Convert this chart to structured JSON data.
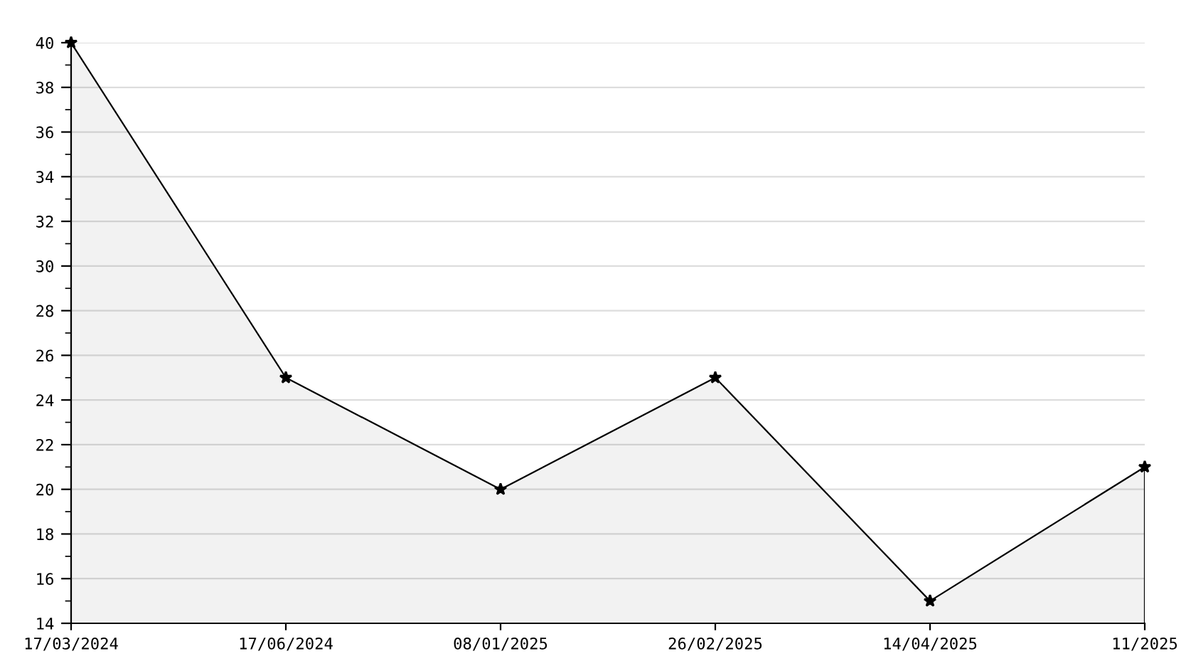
{
  "chart_data": {
    "type": "area",
    "categories": [
      "17/03/2024",
      "17/06/2024",
      "08/01/2025",
      "26/02/2025",
      "14/04/2025",
      "11/2025"
    ],
    "series": [
      {
        "color": "#000000",
        "values": [
          40,
          25,
          20,
          25,
          15,
          21
        ]
      }
    ],
    "ylim": [
      14,
      40
    ],
    "yticks": [
      14,
      {
        "value": 15,
        "label": null
      },
      16,
      {
        "value": 17,
        "label": null
      },
      18,
      {
        "value": 19,
        "label": null
      },
      20,
      {
        "value": 21,
        "label": null
      },
      22,
      {
        "value": 23,
        "label": null
      },
      24,
      {
        "value": 25,
        "label": null
      },
      26,
      {
        "value": 27,
        "label": null
      },
      28,
      {
        "value": 29,
        "label": null
      },
      30,
      {
        "value": 31,
        "label": null
      },
      32,
      {
        "value": 33,
        "label": null
      },
      34,
      {
        "value": 35,
        "label": null
      },
      36,
      {
        "value": 37,
        "label": null
      },
      38,
      {
        "value": 39,
        "label": null
      },
      40
    ],
    "grid": "y",
    "marker": "star",
    "line_style": "solid"
  }
}
